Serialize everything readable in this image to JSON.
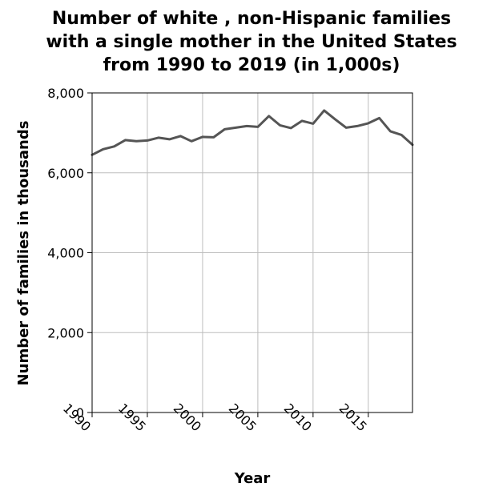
{
  "chart_data": {
    "type": "line",
    "title_lines": [
      "Number of white , non-Hispanic families",
      "with a single mother in the United States",
      "from 1990 to 2019 (in 1,000s)"
    ],
    "xlabel": "Year",
    "ylabel": "Number of families in thousands",
    "xlim": [
      1990,
      2019
    ],
    "ylim": [
      0,
      8000
    ],
    "x_ticks": [
      1990,
      1995,
      2000,
      2005,
      2010,
      2015
    ],
    "x_tick_labels": [
      "1990",
      "1995",
      "2000",
      "2005",
      "2010",
      "2015"
    ],
    "y_ticks": [
      0,
      2000,
      4000,
      6000,
      8000
    ],
    "y_tick_labels": [
      "0",
      "2,000",
      "4,000",
      "6,000",
      "8,000"
    ],
    "grid": true,
    "series": [
      {
        "color": "#555555",
        "x": [
          1990,
          1991,
          1992,
          1993,
          1994,
          1995,
          1996,
          1997,
          1998,
          1999,
          2000,
          2001,
          2002,
          2003,
          2004,
          2005,
          2006,
          2007,
          2008,
          2009,
          2010,
          2011,
          2012,
          2013,
          2014,
          2015,
          2016,
          2017,
          2018,
          2019
        ],
        "values": [
          6450,
          6590,
          6660,
          6820,
          6790,
          6810,
          6880,
          6840,
          6920,
          6790,
          6900,
          6890,
          7090,
          7130,
          7170,
          7150,
          7420,
          7190,
          7120,
          7300,
          7230,
          7560,
          7340,
          7130,
          7170,
          7240,
          7370,
          7040,
          6950,
          6700
        ]
      }
    ]
  }
}
